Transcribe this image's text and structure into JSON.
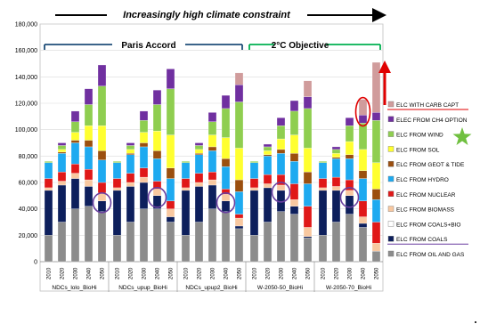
{
  "chart_data": {
    "type": "bar",
    "stacked": true,
    "title": "Increasingly high climate constraint",
    "ylim": [
      0,
      180000
    ],
    "yticks": [
      "0",
      "20,000",
      "40,000",
      "60,000",
      "80,000",
      "100,000",
      "120,000",
      "140,000",
      "160,000",
      "180,000"
    ],
    "grid": true,
    "legend_position": "right",
    "brackets": [
      {
        "label": "Paris Accord"
      },
      {
        "label": "2°C Objective"
      }
    ],
    "groups": [
      {
        "label": "NDCs_lolo_BioHi"
      },
      {
        "label": "NDCs_upup_BioHi"
      },
      {
        "label": "NDCs_upup2_BioHi"
      },
      {
        "label": "W-2050-50_BioHi"
      },
      {
        "label": "W-2050-70_BioHi"
      }
    ],
    "years": [
      "2010",
      "2020",
      "2030",
      "2040",
      "2050"
    ],
    "series": [
      {
        "name": "ELC FROM OIL AND GAS",
        "color": "#8c8c8c"
      },
      {
        "name": "ELC FROM COALS",
        "color": "#0d1f5c"
      },
      {
        "name": "ELC FROM COALS+BIO",
        "color": "#ffffff"
      },
      {
        "name": "ELC FROM BIOMASS",
        "color": "#f8c8a0"
      },
      {
        "name": "ELC FROM NUCLEAR",
        "color": "#e01818"
      },
      {
        "name": "ELC FROM HYDRO",
        "color": "#1eaaf0"
      },
      {
        "name": "ELC FROM GEOT & TIDE",
        "color": "#9b4f0f"
      },
      {
        "name": "ELC FROM SOL",
        "color": "#ffff30"
      },
      {
        "name": "ELC FROM WIND",
        "color": "#8fce50"
      },
      {
        "name": "ELEC FROM CH4 OPTION",
        "color": "#7030a0"
      },
      {
        "name": "ELC WITH CARB CAPT",
        "color": "#d09c9c"
      }
    ],
    "legend_reverse_order": true,
    "underlined_legend_entries": [
      "ELC WITH CARB CAPT",
      "ELC FROM COALS"
    ],
    "bars": [
      [
        [
          20000,
          34000,
          0,
          2000,
          7000,
          12000,
          0,
          0,
          1000,
          0,
          0
        ],
        [
          30000,
          28000,
          0,
          3000,
          7000,
          14000,
          1000,
          2000,
          3000,
          2000,
          0
        ],
        [
          40000,
          23000,
          0,
          4000,
          7000,
          16000,
          2000,
          6000,
          8000,
          8000,
          0
        ],
        [
          42000,
          15000,
          0,
          5000,
          8000,
          17000,
          5000,
          11000,
          16000,
          12000,
          0
        ],
        [
          38000,
          8000,
          0,
          6000,
          8000,
          17000,
          7000,
          19000,
          30000,
          16000,
          0
        ]
      ],
      [
        [
          20000,
          34000,
          0,
          2000,
          7000,
          12000,
          0,
          0,
          1000,
          0,
          0
        ],
        [
          30000,
          27000,
          0,
          3000,
          7000,
          14000,
          1000,
          3000,
          3000,
          2000,
          0
        ],
        [
          40000,
          20000,
          0,
          4000,
          7000,
          16000,
          3000,
          8000,
          9000,
          7000,
          0
        ],
        [
          40000,
          10000,
          0,
          5000,
          6000,
          17000,
          6000,
          15000,
          20000,
          11000,
          0
        ],
        [
          30000,
          4000,
          0,
          6000,
          6000,
          17000,
          8000,
          25000,
          35000,
          15000,
          0
        ]
      ],
      [
        [
          20000,
          34000,
          0,
          2000,
          7000,
          12000,
          0,
          0,
          1000,
          0,
          0
        ],
        [
          30000,
          27000,
          0,
          3000,
          7000,
          14000,
          1000,
          3000,
          3000,
          2000,
          0
        ],
        [
          40000,
          18000,
          0,
          4000,
          6000,
          16000,
          3000,
          9000,
          10000,
          7000,
          0
        ],
        [
          38000,
          8000,
          0,
          5000,
          4000,
          17000,
          6000,
          16000,
          22000,
          10000,
          0
        ],
        [
          25000,
          2000,
          0,
          6000,
          3000,
          17000,
          9000,
          24000,
          35000,
          13000,
          9000
        ]
      ],
      [
        [
          20000,
          34000,
          0,
          2000,
          7000,
          12000,
          0,
          0,
          1000,
          0,
          0
        ],
        [
          30000,
          26000,
          0,
          3000,
          7000,
          14000,
          1000,
          3000,
          3000,
          2000,
          0
        ],
        [
          38000,
          16000,
          0,
          4000,
          8000,
          16000,
          3000,
          8000,
          10000,
          6000,
          0
        ],
        [
          36000,
          6000,
          0,
          5000,
          12000,
          17000,
          6000,
          14000,
          18000,
          8000,
          0
        ],
        [
          18000,
          1000,
          0,
          7000,
          16000,
          17000,
          9000,
          18000,
          30000,
          9000,
          12000
        ]
      ],
      [
        [
          20000,
          34000,
          0,
          2000,
          7000,
          12000,
          0,
          0,
          1000,
          0,
          0
        ],
        [
          30000,
          24000,
          0,
          3000,
          7000,
          14000,
          1000,
          3000,
          3000,
          2000,
          0
        ],
        [
          36000,
          14000,
          0,
          4000,
          8000,
          16000,
          3000,
          10000,
          12000,
          6000,
          0
        ],
        [
          26000,
          3000,
          0,
          5000,
          12000,
          17000,
          6000,
          16000,
          20000,
          6000,
          12000
        ],
        [
          8000,
          0,
          0,
          6000,
          16000,
          17000,
          8000,
          20000,
          32000,
          6000,
          38000
        ]
      ]
    ],
    "highlights": [
      {
        "group": 0,
        "year": 4,
        "color": "#6a3fa0"
      },
      {
        "group": 1,
        "year": 3,
        "color": "#6a3fa0"
      },
      {
        "group": 2,
        "year": 3,
        "color": "#6a3fa0"
      },
      {
        "group": 3,
        "year": 2,
        "color": "#6a3fa0"
      },
      {
        "group": 4,
        "year": 2,
        "color": "#6a3fa0"
      },
      {
        "group": 4,
        "year": 3,
        "color": "#e00000"
      }
    ]
  }
}
